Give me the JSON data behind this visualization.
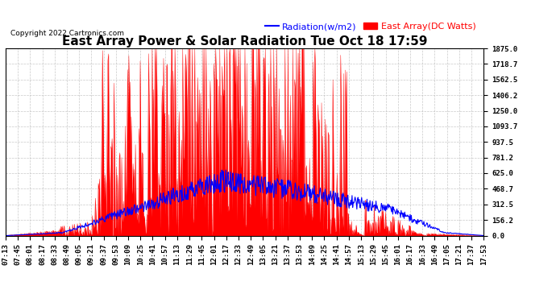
{
  "title": "East Array Power & Solar Radiation Tue Oct 18 17:59",
  "copyright": "Copyright 2022 Cartronics.com",
  "legend_radiation": "Radiation(w/m2)",
  "legend_east": "East Array(DC Watts)",
  "radiation_color": "blue",
  "east_color": "red",
  "east_fill_color": "red",
  "background_color": "#ffffff",
  "plot_bg_color": "#ffffff",
  "grid_color": "#aaaaaa",
  "ymin": 0.0,
  "ymax": 1875.0,
  "yticks": [
    0.0,
    156.2,
    312.5,
    468.7,
    625.0,
    781.2,
    937.5,
    1093.7,
    1250.0,
    1406.2,
    1562.5,
    1718.7,
    1875.0
  ],
  "ytick_labels": [
    "0.0",
    "156.2",
    "312.5",
    "468.7",
    "625.0",
    "781.2",
    "937.5",
    "1093.7",
    "1250.0",
    "1406.2",
    "1562.5",
    "1718.7",
    "1875.0"
  ],
  "time_labels": [
    "07:13",
    "07:45",
    "08:01",
    "08:17",
    "08:33",
    "08:49",
    "09:05",
    "09:21",
    "09:37",
    "09:53",
    "10:09",
    "10:25",
    "10:41",
    "10:57",
    "11:13",
    "11:29",
    "11:45",
    "12:01",
    "12:17",
    "12:33",
    "12:49",
    "13:05",
    "13:21",
    "13:37",
    "13:53",
    "14:09",
    "14:25",
    "14:41",
    "14:57",
    "15:13",
    "15:29",
    "15:45",
    "16:01",
    "16:17",
    "16:33",
    "16:49",
    "17:05",
    "17:21",
    "17:37",
    "17:53"
  ],
  "title_fontsize": 11,
  "tick_fontsize": 6.5,
  "legend_fontsize": 8,
  "copyright_fontsize": 6.5
}
